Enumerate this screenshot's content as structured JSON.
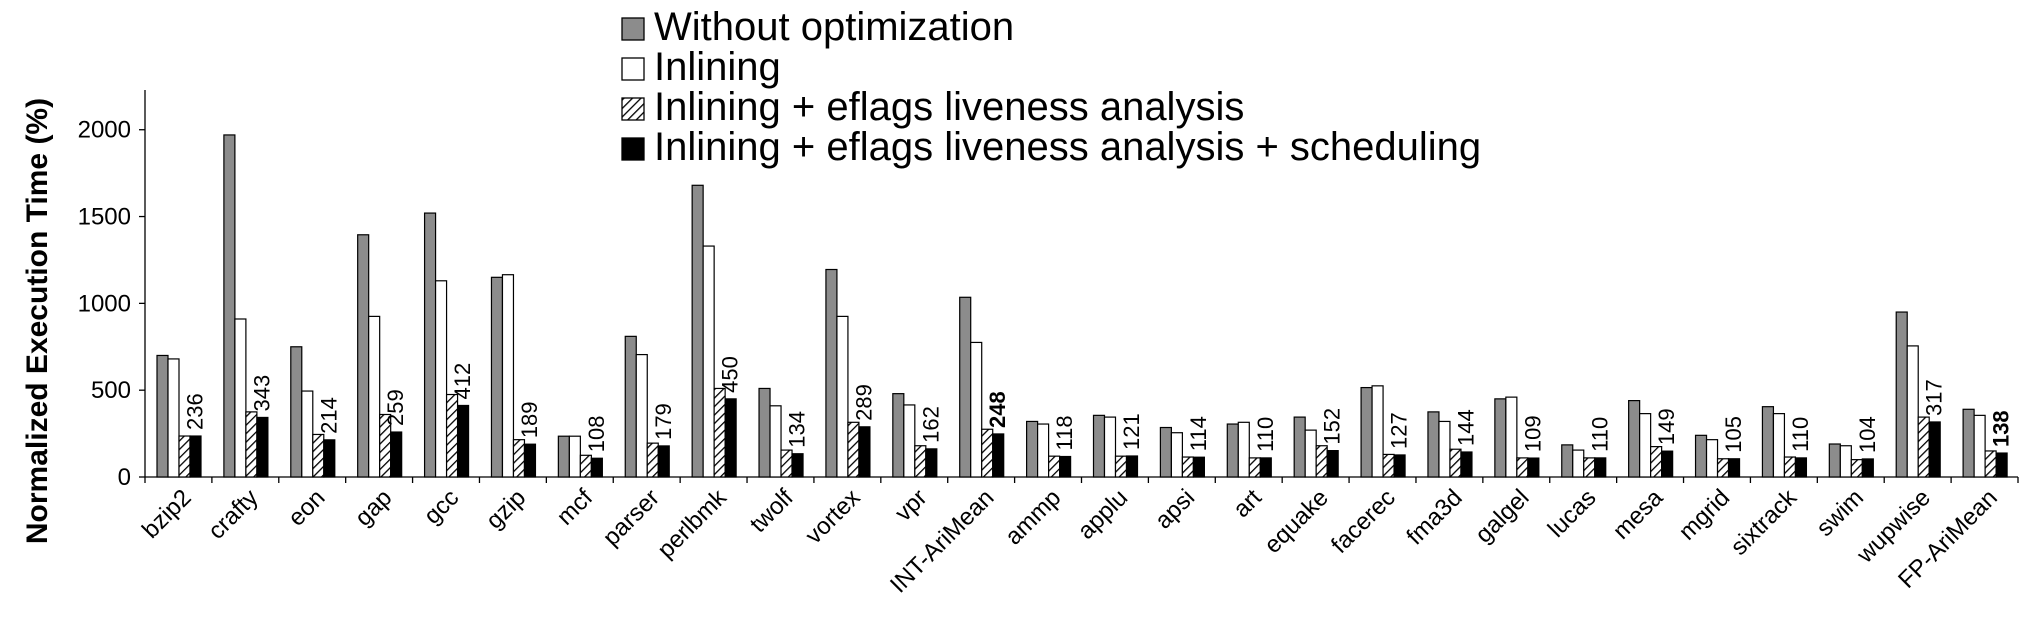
{
  "chart_data": {
    "type": "bar",
    "title": "",
    "xlabel": "",
    "ylabel": "Normalized Execution Time (%)",
    "ylim": [
      0,
      2200
    ],
    "yticks": [
      0,
      500,
      1000,
      1500,
      2000
    ],
    "grid": false,
    "legend_position": "top-center",
    "categories": [
      "bzip2",
      "crafty",
      "eon",
      "gap",
      "gcc",
      "gzip",
      "mcf",
      "parser",
      "perlbmk",
      "twolf",
      "vortex",
      "vpr",
      "INT-AriMean",
      "ammp",
      "applu",
      "apsi",
      "art",
      "equake",
      "facerec",
      "fma3d",
      "galgel",
      "lucas",
      "mesa",
      "mgrid",
      "sixtrack",
      "swim",
      "wupwise",
      "FP-AriMean"
    ],
    "series": [
      {
        "name": "Without optimization",
        "style": "gray",
        "values": [
          700,
          1970,
          750,
          1395,
          1520,
          1150,
          235,
          810,
          1680,
          510,
          1195,
          480,
          1035,
          320,
          355,
          285,
          305,
          345,
          515,
          375,
          450,
          185,
          440,
          240,
          405,
          190,
          950,
          390
        ]
      },
      {
        "name": "Inlining",
        "style": "white",
        "values": [
          680,
          910,
          495,
          925,
          1130,
          1165,
          235,
          705,
          1330,
          410,
          925,
          415,
          775,
          305,
          345,
          255,
          315,
          270,
          525,
          320,
          460,
          155,
          365,
          215,
          365,
          180,
          755,
          355
        ]
      },
      {
        "name": "Inlining + eflags liveness analysis",
        "style": "hatched",
        "values": [
          236,
          375,
          245,
          360,
          475,
          215,
          125,
          195,
          510,
          155,
          315,
          180,
          275,
          120,
          120,
          115,
          110,
          180,
          130,
          160,
          110,
          110,
          175,
          105,
          115,
          100,
          345,
          150
        ]
      },
      {
        "name": "Inlining + eflags liveness analysis + scheduling",
        "style": "black",
        "values": [
          236,
          343,
          214,
          259,
          412,
          189,
          108,
          179,
          450,
          134,
          289,
          162,
          248,
          118,
          121,
          114,
          110,
          152,
          127,
          144,
          109,
          110,
          149,
          105,
          110,
          104,
          317,
          138
        ]
      }
    ],
    "data_labels": [
      "236",
      "343",
      "214",
      "259",
      "412",
      "189",
      "108",
      "179",
      "450",
      "134",
      "289",
      "162",
      "248",
      "118",
      "121",
      "114",
      "110",
      "152",
      "127",
      "144",
      "109",
      "110",
      "149",
      "105",
      "110",
      "104",
      "317",
      "138"
    ],
    "bold_labels": [
      "INT-AriMean",
      "FP-AriMean"
    ]
  }
}
